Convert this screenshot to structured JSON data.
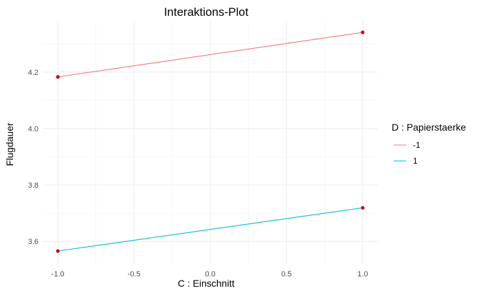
{
  "chart_data": {
    "type": "line",
    "title": "Interaktions-Plot",
    "xlabel": "C : Einschnitt",
    "ylabel": "Flugdauer",
    "xlim": [
      -1.1,
      1.1
    ],
    "ylim": [
      3.52,
      4.38
    ],
    "x_ticks": [
      -1.0,
      -0.5,
      0.0,
      0.5,
      1.0
    ],
    "x_tick_labels": [
      "-1.0",
      "-0.5",
      "0.0",
      "0.5",
      "1.0"
    ],
    "y_ticks": [
      3.6,
      3.8,
      4.0,
      4.2
    ],
    "y_tick_labels": [
      "3.6",
      "3.8",
      "4.0",
      "4.2"
    ],
    "grid": true,
    "legend": {
      "title": "D : Papierstaerke",
      "position": "right"
    },
    "point_color": "#cc0000",
    "series": [
      {
        "name": "-1",
        "color": "#F8766D",
        "x": [
          -1,
          1
        ],
        "y": [
          4.183,
          4.341
        ]
      },
      {
        "name": "1",
        "color": "#00BFC4",
        "x": [
          -1,
          1
        ],
        "y": [
          3.566,
          3.719
        ]
      }
    ]
  }
}
